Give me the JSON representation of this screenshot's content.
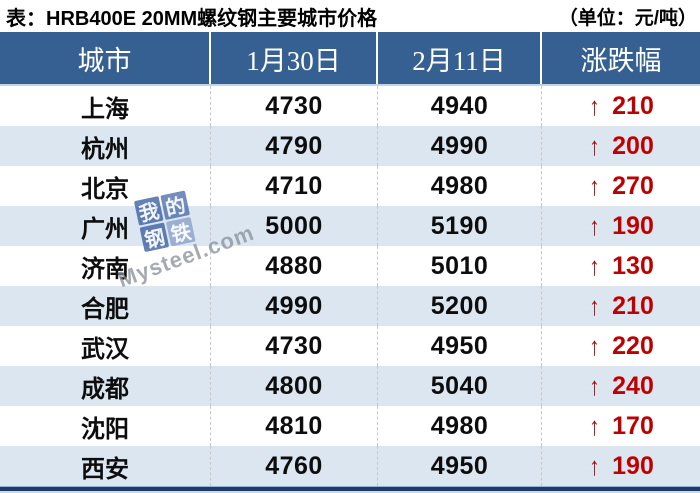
{
  "title": {
    "label": "表：HRB400E 20MM螺纹钢主要城市价格",
    "unit": "（单位：元/吨）"
  },
  "watermark": {
    "chars": [
      "我",
      "的",
      "钢",
      "铁"
    ],
    "brand": "Mysteel.com"
  },
  "colors": {
    "header_bg": "#366092",
    "alt_row_bg": "#dce6f1",
    "change_red": "#c00000",
    "bottom_border_navy": "#1f3a63"
  },
  "chart_data": {
    "type": "table",
    "title": "表：HRB400E 20MM螺纹钢主要城市价格",
    "unit": "元/吨",
    "arrow_up": "↑",
    "columns": [
      "城市",
      "1月30日",
      "2月11日",
      "涨跌幅"
    ],
    "rows": [
      {
        "city": "上海",
        "jan30": "4730",
        "feb11": "4940",
        "change": "210",
        "direction": "up"
      },
      {
        "city": "杭州",
        "jan30": "4790",
        "feb11": "4990",
        "change": "200",
        "direction": "up"
      },
      {
        "city": "北京",
        "jan30": "4710",
        "feb11": "4980",
        "change": "270",
        "direction": "up"
      },
      {
        "city": "广州",
        "jan30": "5000",
        "feb11": "5190",
        "change": "190",
        "direction": "up"
      },
      {
        "city": "济南",
        "jan30": "4880",
        "feb11": "5010",
        "change": "130",
        "direction": "up"
      },
      {
        "city": "合肥",
        "jan30": "4990",
        "feb11": "5200",
        "change": "210",
        "direction": "up"
      },
      {
        "city": "武汉",
        "jan30": "4730",
        "feb11": "4950",
        "change": "220",
        "direction": "up"
      },
      {
        "city": "成都",
        "jan30": "4800",
        "feb11": "5040",
        "change": "240",
        "direction": "up"
      },
      {
        "city": "沈阳",
        "jan30": "4810",
        "feb11": "4980",
        "change": "170",
        "direction": "up"
      },
      {
        "city": "西安",
        "jan30": "4760",
        "feb11": "4950",
        "change": "190",
        "direction": "up"
      }
    ]
  }
}
